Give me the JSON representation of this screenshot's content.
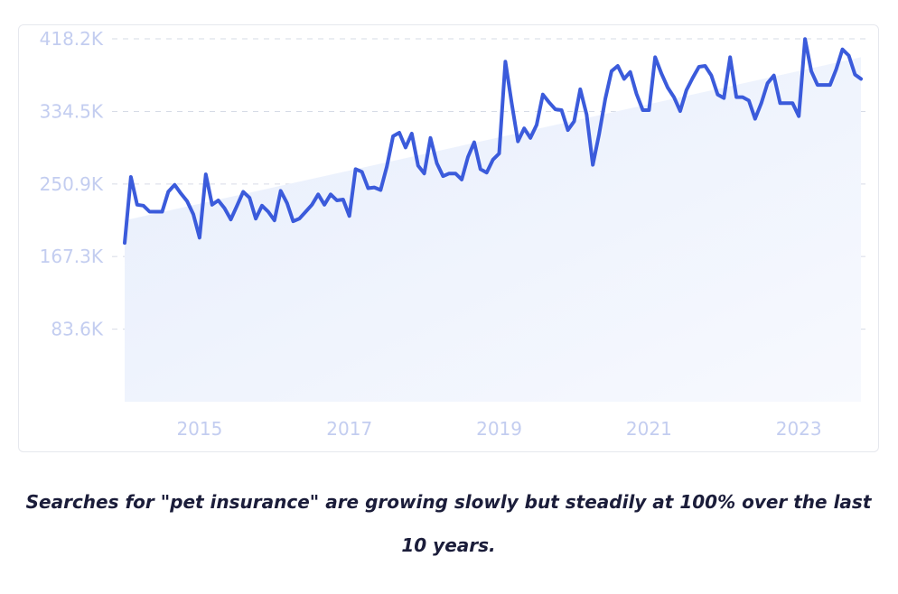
{
  "caption": "Searches for \"pet insurance\" are growing slowly but steadily at 100% over the last 10 years.",
  "colors": {
    "line": "#3b5bdb",
    "area": "#e7eefc",
    "tick": "#c3cdf0",
    "grid": "#d6dbe6",
    "caption": "#1b1d3a"
  },
  "chart_data": {
    "type": "line",
    "title": "",
    "xlabel": "",
    "ylabel": "",
    "ylim": [
      0,
      418200
    ],
    "xlim": [
      2014.0,
      2023.83
    ],
    "yticks": [
      83600,
      167300,
      250900,
      334500,
      418200
    ],
    "ytick_labels": [
      "83.6K",
      "167.3K",
      "250.9K",
      "334.5K",
      "418.2K"
    ],
    "xticks": [
      2015,
      2017,
      2019,
      2021,
      2023
    ],
    "xtick_labels": [
      "2015",
      "2017",
      "2019",
      "2021",
      "2023"
    ],
    "grid": "horizontal dashed",
    "trend": {
      "type": "area",
      "start": [
        2014.0,
        209000
      ],
      "end": [
        2023.83,
        397000
      ]
    },
    "series": [
      {
        "x": [
          2014.0,
          2014.083,
          2014.167,
          2014.25,
          2014.333,
          2014.417,
          2014.5,
          2014.583,
          2014.667,
          2014.75,
          2014.833,
          2014.917,
          2015.0,
          2015.083,
          2015.167,
          2015.25,
          2015.333,
          2015.417,
          2015.5,
          2015.583,
          2015.667,
          2015.75,
          2015.833,
          2015.917,
          2016.0,
          2016.083,
          2016.167,
          2016.25,
          2016.333,
          2016.417,
          2016.5,
          2016.583,
          2016.667,
          2016.75,
          2016.833,
          2016.917,
          2017.0,
          2017.083,
          2017.167,
          2017.25,
          2017.333,
          2017.417,
          2017.5,
          2017.583,
          2017.667,
          2017.75,
          2017.833,
          2017.917,
          2018.0,
          2018.083,
          2018.167,
          2018.25,
          2018.333,
          2018.417,
          2018.5,
          2018.583,
          2018.667,
          2018.75,
          2018.833,
          2018.917,
          2019.0,
          2019.083,
          2019.167,
          2019.25,
          2019.333,
          2019.417,
          2019.5,
          2019.583,
          2019.667,
          2019.75,
          2019.833,
          2019.917,
          2020.0,
          2020.083,
          2020.167,
          2020.25,
          2020.333,
          2020.417,
          2020.5,
          2020.583,
          2020.667,
          2020.75,
          2020.833,
          2020.917,
          2021.0,
          2021.083,
          2021.167,
          2021.25,
          2021.333,
          2021.417,
          2021.5,
          2021.583,
          2021.667,
          2021.75,
          2021.833,
          2021.917,
          2022.0,
          2022.083,
          2022.167,
          2022.25,
          2022.333,
          2022.417,
          2022.5,
          2022.583,
          2022.667,
          2022.75,
          2022.833,
          2022.917,
          2023.0,
          2023.083,
          2023.167,
          2023.25,
          2023.333,
          2023.417,
          2023.5,
          2023.583,
          2023.667,
          2023.75,
          2023.83
        ],
        "values": [
          183000,
          259000,
          227000,
          226000,
          219000,
          219000,
          219000,
          242000,
          250000,
          240000,
          231000,
          216000,
          189000,
          262000,
          227000,
          232000,
          223000,
          210000,
          226000,
          242000,
          235000,
          211000,
          226000,
          219000,
          209000,
          243000,
          229000,
          208000,
          211000,
          219000,
          227000,
          239000,
          227000,
          239000,
          232000,
          233000,
          214000,
          268000,
          265000,
          246000,
          247000,
          244000,
          271000,
          306000,
          310000,
          293000,
          309000,
          272000,
          263000,
          304000,
          275000,
          260000,
          263000,
          263000,
          256000,
          282000,
          299000,
          268000,
          264000,
          279000,
          286000,
          392000,
          344000,
          300000,
          315000,
          304000,
          319000,
          354000,
          345000,
          337000,
          336000,
          313000,
          323000,
          360000,
          331000,
          273000,
          308000,
          349000,
          381000,
          387000,
          372000,
          380000,
          355000,
          336000,
          336000,
          397000,
          378000,
          362000,
          351000,
          335000,
          359000,
          373000,
          386000,
          387000,
          376000,
          354000,
          350000,
          397000,
          351000,
          351000,
          347000,
          326000,
          344000,
          367000,
          376000,
          344000,
          344000,
          344000,
          329000,
          418000,
          381000,
          365000,
          365000,
          365000,
          383000,
          406000,
          399000,
          377000,
          372000
        ]
      }
    ]
  }
}
